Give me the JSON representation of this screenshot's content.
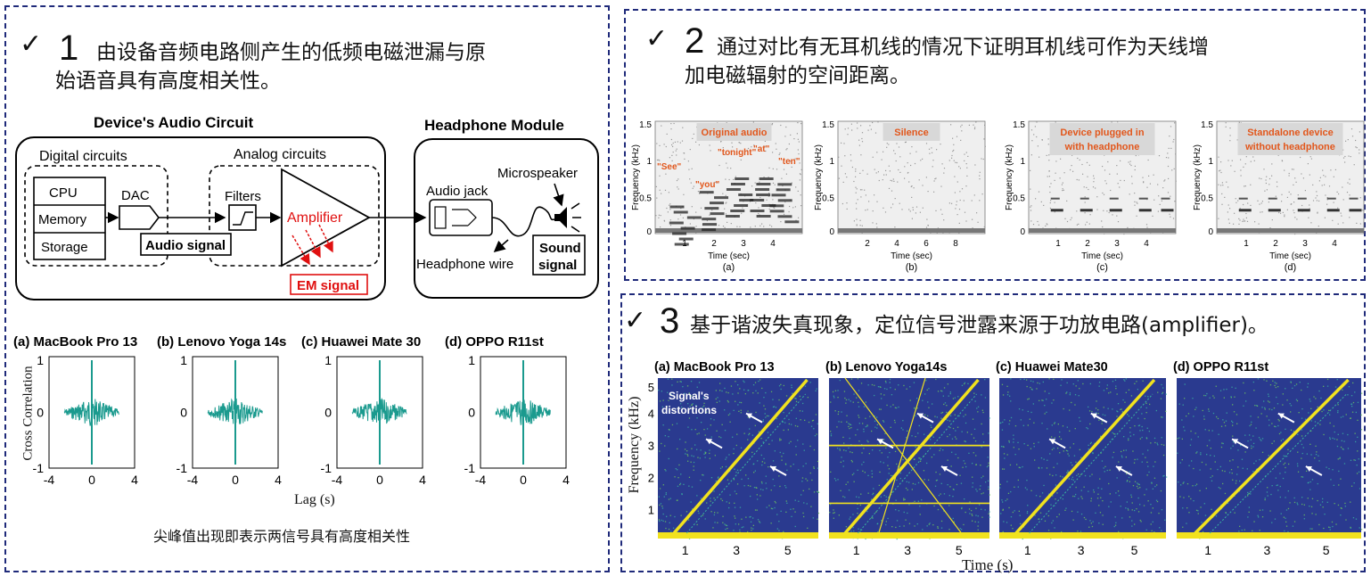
{
  "panel1": {
    "number": "1",
    "heading_line1": "由设备音频电路侧产生的低频电磁泄漏与原",
    "heading_line2": "始语音具有高度相关性。",
    "diagram": {
      "device_title": "Device's Audio Circuit",
      "headphone_title": "Headphone Module",
      "digital_label": "Digital circuits",
      "analog_label": "Analog circuits",
      "cpu": "CPU",
      "memory": "Memory",
      "storage": "Storage",
      "dac": "DAC",
      "filters": "Filters",
      "amplifier": "Amplifier",
      "audio_signal": "Audio signal",
      "em_signal": "EM signal",
      "audio_jack": "Audio jack",
      "microspeaker": "Microspeaker",
      "headphone_wire": "Headphone wire",
      "sound_signal_1": "Sound",
      "sound_signal_2": "signal"
    },
    "xcorr": {
      "ylabel": "Cross Correlation",
      "xlabel": "Lag (s)",
      "titles": [
        "(a) MacBook Pro 13",
        "(b) Lenovo Yoga 14s",
        "(c) Huawei Mate 30",
        "(d) OPPO R11st"
      ],
      "yticks": [
        "1",
        "0",
        "-1"
      ],
      "xticks": [
        "-4",
        "0",
        "4"
      ]
    },
    "caption": "尖峰值出现即表示两信号具有高度相关性"
  },
  "panel2": {
    "number": "2",
    "heading_line1": "通过对比有无耳机线的情况下证明耳机线可作为天线增",
    "heading_line2": "加电磁辐射的空间距离。",
    "ylabel": "Frequency (kHz)",
    "xlabel": "Time (sec)",
    "yticks": [
      "1.5",
      "1",
      "0.5",
      "0"
    ],
    "plots": [
      {
        "sub": "(a)",
        "label1": "Original audio",
        "label2": "",
        "xticks": [
          "1",
          "2",
          "3",
          "4"
        ]
      },
      {
        "sub": "(b)",
        "label1": "Silence",
        "label2": "",
        "xticks": [
          "2",
          "4",
          "6",
          "8"
        ]
      },
      {
        "sub": "(c)",
        "label1": "Device plugged in",
        "label2": "with headphone",
        "xticks": [
          "1",
          "2",
          "3",
          "4"
        ]
      },
      {
        "sub": "(d)",
        "label1": "Standalone device",
        "label2": "without headphone",
        "xticks": [
          "1",
          "2",
          "3",
          "4"
        ]
      }
    ],
    "words": [
      "\"See\"",
      "\"you\"",
      "\"tonight\"",
      "\"at\"",
      "\"ten\""
    ]
  },
  "panel3": {
    "number": "3",
    "heading": "基于谐波失真现象，定位信号泄露来源于功放电路(amplifier)。",
    "ylabel": "Frequency (kHz)",
    "xlabel": "Time (s)",
    "yticks": [
      "5",
      "4",
      "3",
      "2",
      "1"
    ],
    "xticks": [
      "1",
      "3",
      "5"
    ],
    "titles": [
      "(a) MacBook Pro 13",
      "(b) Lenovo Yoga14s",
      "(c) Huawei Mate30",
      "(d) OPPO R11st"
    ],
    "annotation_1": "Signal's",
    "annotation_2": "distortions"
  },
  "colors": {
    "border": "#1f2a7a",
    "teal": "#1a9a8e",
    "red": "#e01010",
    "label_orange": "#e2571c",
    "spec_bg": "#2a3a8f",
    "yellow": "#f1e21e"
  }
}
